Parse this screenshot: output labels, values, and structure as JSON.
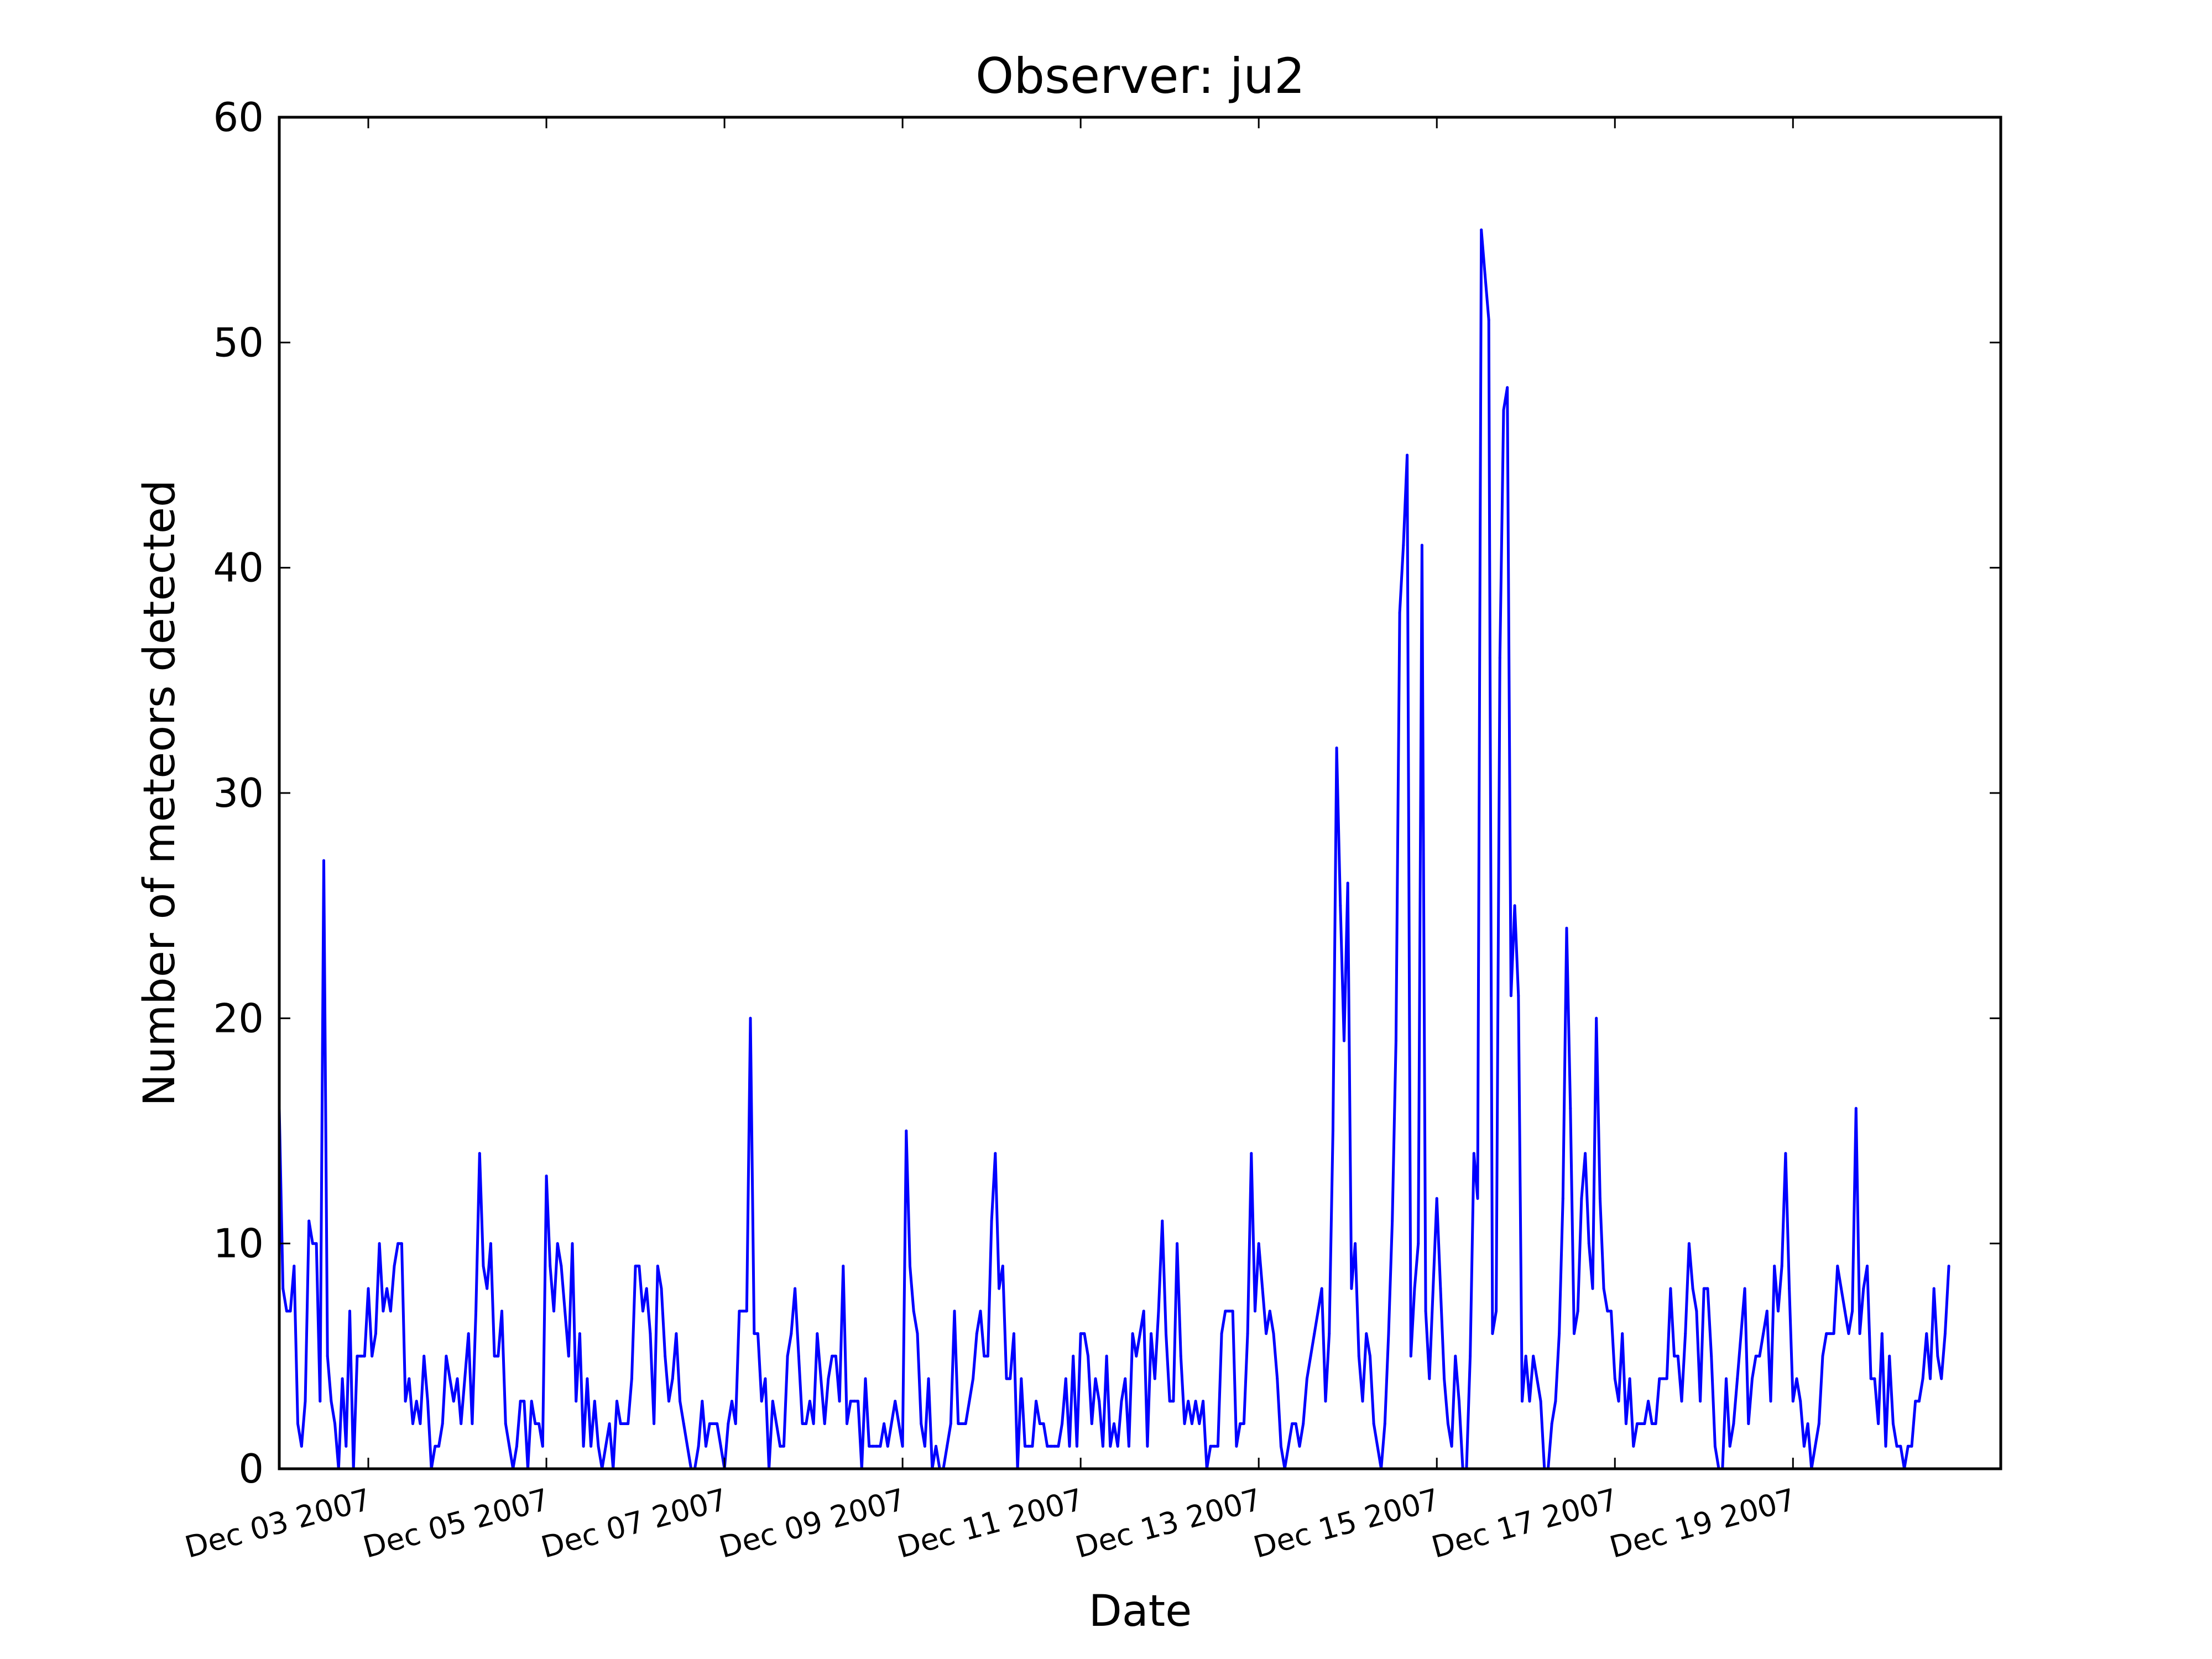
{
  "chart_data": {
    "type": "line",
    "title": "Observer: ju2",
    "xlabel": "Date",
    "ylabel": "Number of meteors detected",
    "x_start": "Dec 02 2007 00:00",
    "x_end": "Dec 21 2007 08:00",
    "sampling": "hourly",
    "xticks": [
      "Dec 03 2007",
      "Dec 05 2007",
      "Dec 07 2007",
      "Dec 09 2007",
      "Dec 11 2007",
      "Dec 13 2007",
      "Dec 15 2007",
      "Dec 17 2007",
      "Dec 19 2007"
    ],
    "ylim": [
      0,
      60
    ],
    "yticks": [
      0,
      10,
      20,
      30,
      40,
      50,
      60
    ],
    "grid": false,
    "series": [
      {
        "color": "#0000ff",
        "values": [
          16,
          8,
          7,
          7,
          9,
          2,
          1,
          3,
          11,
          10,
          10,
          3,
          27,
          5,
          3,
          2,
          0,
          4,
          1,
          7,
          0,
          5,
          5,
          5,
          8,
          5,
          6,
          10,
          7,
          8,
          7,
          9,
          10,
          10,
          3,
          4,
          2,
          3,
          2,
          5,
          3,
          0,
          1,
          1,
          2,
          5,
          4,
          3,
          4,
          2,
          4,
          6,
          2,
          7,
          14,
          9,
          8,
          10,
          5,
          5,
          7,
          2,
          1,
          0,
          1,
          3,
          3,
          0,
          3,
          2,
          2,
          1,
          13,
          9,
          7,
          10,
          9,
          7,
          5,
          10,
          3,
          6,
          1,
          4,
          1,
          3,
          1,
          0,
          1,
          2,
          0,
          3,
          2,
          2,
          2,
          4,
          9,
          9,
          7,
          8,
          6,
          2,
          9,
          8,
          5,
          3,
          4,
          6,
          3,
          2,
          1,
          0,
          0,
          1,
          3,
          1,
          2,
          2,
          2,
          1,
          0,
          2,
          3,
          2,
          7,
          7,
          7,
          20,
          6,
          6,
          3,
          4,
          0,
          3,
          2,
          1,
          1,
          5,
          6,
          8,
          5,
          2,
          2,
          3,
          2,
          6,
          4,
          2,
          4,
          5,
          5,
          3,
          9,
          2,
          3,
          3,
          3,
          0,
          4,
          1,
          1,
          1,
          1,
          2,
          1,
          2,
          3,
          2,
          1,
          15,
          9,
          7,
          6,
          2,
          1,
          4,
          0,
          1,
          0,
          0,
          1,
          2,
          7,
          2,
          2,
          2,
          3,
          4,
          6,
          7,
          5,
          5,
          11,
          14,
          8,
          9,
          4,
          4,
          6,
          0,
          4,
          1,
          1,
          1,
          3,
          2,
          2,
          1,
          1,
          1,
          1,
          2,
          4,
          1,
          5,
          1,
          6,
          6,
          5,
          2,
          4,
          3,
          1,
          5,
          1,
          2,
          1,
          3,
          4,
          1,
          6,
          5,
          6,
          7,
          1,
          6,
          4,
          7,
          11,
          6,
          3,
          3,
          10,
          5,
          2,
          3,
          2,
          3,
          2,
          3,
          0,
          1,
          1,
          1,
          6,
          7,
          7,
          7,
          1,
          2,
          2,
          6,
          14,
          7,
          10,
          8,
          6,
          7,
          6,
          4,
          1,
          0,
          1,
          2,
          2,
          1,
          2,
          4,
          5,
          6,
          7,
          8,
          3,
          6,
          15,
          32,
          25,
          19,
          26,
          8,
          10,
          5,
          3,
          6,
          5,
          2,
          1,
          0,
          2,
          6,
          11,
          19,
          38,
          41,
          45,
          5,
          8,
          10,
          41,
          7,
          4,
          8,
          12,
          8,
          4,
          2,
          1,
          5,
          3,
          0,
          0,
          5,
          14,
          12,
          55,
          53,
          51,
          6,
          7,
          36,
          47,
          48,
          21,
          25,
          21,
          3,
          5,
          3,
          5,
          4,
          3,
          0,
          0,
          2,
          3,
          6,
          12,
          24,
          16,
          6,
          7,
          12,
          14,
          10,
          8,
          20,
          12,
          8,
          7,
          7,
          4,
          3,
          6,
          2,
          4,
          1,
          2,
          2,
          2,
          3,
          2,
          2,
          4,
          4,
          4,
          8,
          5,
          5,
          3,
          6,
          10,
          8,
          7,
          3,
          8,
          8,
          5,
          1,
          0,
          0,
          4,
          1,
          2,
          4,
          6,
          8,
          2,
          4,
          5,
          5,
          6,
          7,
          3,
          9,
          7,
          9,
          14,
          8,
          3,
          4,
          3,
          1,
          2,
          0,
          1,
          2,
          5,
          6,
          6,
          6,
          9,
          8,
          7,
          6,
          7,
          16,
          6,
          8,
          9,
          4,
          4,
          2,
          6,
          1,
          5,
          2,
          1,
          1,
          0,
          1,
          1,
          3,
          3,
          4,
          6,
          4,
          8,
          5,
          4,
          6,
          9
        ]
      }
    ]
  }
}
